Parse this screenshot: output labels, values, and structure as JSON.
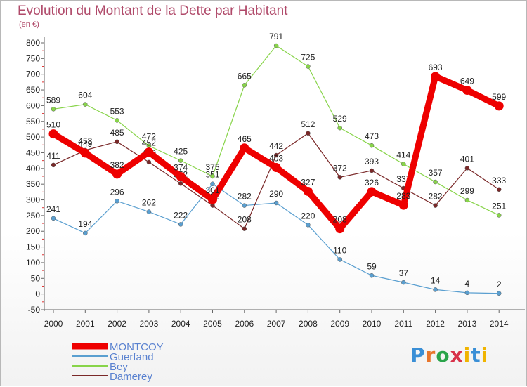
{
  "title": "Evolution du Montant de la Dette par Habitant",
  "unit": "(en €)",
  "brand": {
    "text": "Proxiti",
    "colors": [
      "#3a8fd6",
      "#e8762c",
      "#2aa44a",
      "#d8324a",
      "#f0b400",
      "#3a8fd6",
      "#f0b400"
    ]
  },
  "chart_data": {
    "type": "line",
    "title": "Evolution du Montant de la Dette par Habitant",
    "ylabel": "(en €)",
    "ylim": [
      -50,
      800
    ],
    "ytick_step": 50,
    "yticks": [
      "-50",
      "0",
      "50",
      "100",
      "150",
      "200",
      "250",
      "300",
      "350",
      "400",
      "450",
      "500",
      "550",
      "600",
      "650",
      "700",
      "750",
      "800"
    ],
    "grid": false,
    "legend_position": "bottom-left",
    "x": [
      "2000",
      "2001",
      "2002",
      "2003",
      "2004",
      "2005",
      "2006",
      "2007",
      "2008",
      "2009",
      "2010",
      "2011",
      "2012",
      "2013",
      "2014"
    ],
    "series": [
      {
        "name": "MONTCOY",
        "color": "#ee0000",
        "values": [
          510,
          449,
          382,
          452,
          374,
          301,
          465,
          403,
          327,
          208,
          326,
          283,
          693,
          649,
          599
        ]
      },
      {
        "name": "Guerfand",
        "color": "#5a9fd0",
        "values": [
          241,
          194,
          296,
          262,
          222,
          351,
          282,
          290,
          220,
          110,
          59,
          37,
          14,
          4,
          2
        ]
      },
      {
        "name": "Bey",
        "color": "#88d44a",
        "values": [
          589,
          604,
          553,
          472,
          425,
          375,
          null,
          791,
          725,
          529,
          473,
          414,
          357,
          299,
          251
        ]
      },
      {
        "name": "Damerey",
        "color": "#7a2828",
        "values": [
          411,
          458,
          485,
          420,
          352,
          282,
          208,
          442,
          512,
          372,
          393,
          337,
          282,
          401,
          333
        ]
      }
    ],
    "bey_2006": 665
  }
}
